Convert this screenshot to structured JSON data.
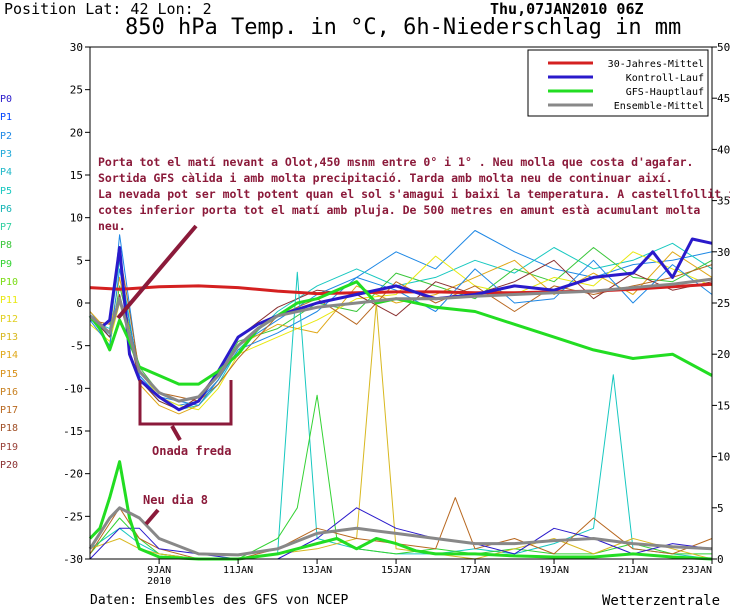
{
  "header": {
    "position_text": "Position   Lat: 42 Lon: 2",
    "date_text": "Thu,07JAN2010 06Z"
  },
  "footer": {
    "source": "Daten: Ensembles des GFS von NCEP",
    "brand": "Wetterzentrale"
  },
  "members": {
    "labels": [
      "P0",
      "P1",
      "P2",
      "P3",
      "P4",
      "P5",
      "P6",
      "P7",
      "P8",
      "P9",
      "P10",
      "P11",
      "P12",
      "P13",
      "P14",
      "P15",
      "P16",
      "P17",
      "P18",
      "P19",
      "P20"
    ],
    "colors": [
      "#2a1acb",
      "#0044ff",
      "#1e88e5",
      "#1fa8d8",
      "#20b8c8",
      "#18c8c0",
      "#16b4b4",
      "#2fd0a0",
      "#3ac63a",
      "#33d233",
      "#7adc14",
      "#e8e810",
      "#e0d020",
      "#d8b820",
      "#e0a818",
      "#d89018",
      "#c88020",
      "#b86820",
      "#a05028",
      "#984038",
      "#8a3030"
    ]
  },
  "annotations": {
    "comment": [
      "Porta tot el matí nevant a Olot,450 msnm  entre 0° i 1° . Neu molla que costa d'agafar.",
      "Sortida GFS càlida i amb molta precipitació. Tarda amb molta neu de continuar així.",
      "La nevada pot ser molt potent quan el sol s'amagui i baixi la temperatura.  A castellfollit i",
      "cotes inferior porta tot el matí amb pluja. De 500 metres en amunt està acumulant molta",
      "neu."
    ],
    "cold_wave": "Onada freda",
    "snow_day": "Neu dia 8",
    "color": "#8b1a3a"
  },
  "chart_data": {
    "type": "line",
    "title": "850 hPa Temp. in °C, 6h-Niederschlag in mm",
    "x_ticks": [
      "9JAN\n2010",
      "11JAN",
      "13JAN",
      "15JAN",
      "17JAN",
      "19JAN",
      "21JAN",
      "23JAN"
    ],
    "x_tick_days": [
      9,
      11,
      13,
      15,
      17,
      19,
      21,
      23
    ],
    "x_range": [
      7.25,
      23.0
    ],
    "y_left_label_unit": "°C",
    "ylim_left": [
      -30,
      30
    ],
    "y_left_ticks": [
      -30,
      -25,
      -20,
      -15,
      -10,
      -5,
      0,
      5,
      10,
      15,
      20,
      25,
      30
    ],
    "ylim_right": [
      0,
      50
    ],
    "y_right_ticks": [
      0,
      5,
      10,
      15,
      20,
      25,
      30,
      35,
      40,
      45,
      50
    ],
    "grid": false,
    "legend_position": "top-right",
    "series": [
      {
        "name": "30-Jahres-Mittel",
        "axis": "left",
        "color": "#d42020",
        "width": 3,
        "x": [
          7.25,
          8.0,
          9.0,
          10.0,
          11.0,
          12.0,
          13.0,
          14.0,
          15.0,
          16.0,
          17.0,
          18.0,
          19.0,
          20.0,
          21.0,
          22.0,
          23.0
        ],
        "y": [
          1.8,
          1.6,
          1.9,
          2.0,
          1.8,
          1.4,
          1.1,
          1.2,
          1.3,
          1.3,
          1.2,
          1.2,
          1.3,
          1.4,
          1.6,
          1.9,
          2.2
        ]
      },
      {
        "name": "Kontroll-Lauf",
        "axis": "left",
        "color": "#2a1acb",
        "width": 3,
        "x": [
          7.25,
          7.5,
          7.75,
          8.0,
          8.25,
          8.5,
          9.0,
          9.5,
          10.0,
          10.5,
          11.0,
          11.5,
          12.0,
          13.0,
          14.0,
          15.0,
          16.0,
          17.0,
          18.0,
          19.0,
          20.0,
          21.0,
          21.5,
          22.0,
          22.5,
          23.0
        ],
        "y": [
          -1.5,
          -3.0,
          -2.0,
          6.5,
          -6.0,
          -9.0,
          -11.0,
          -12.5,
          -11.5,
          -8.0,
          -4.0,
          -2.5,
          -1.5,
          0.0,
          1.0,
          2.0,
          0.5,
          1.0,
          2.0,
          1.5,
          3.0,
          3.5,
          6.0,
          3.0,
          7.5,
          7.0
        ]
      },
      {
        "name": "GFS-Hauptlauf",
        "axis": "left",
        "color": "#22dd22",
        "width": 3,
        "x": [
          7.25,
          7.5,
          7.75,
          8.0,
          8.25,
          8.5,
          9.0,
          9.5,
          10.0,
          10.5,
          11.0,
          11.5,
          12.0,
          12.5,
          13.0,
          14.0,
          14.5,
          15.0,
          16.0,
          17.0,
          18.0,
          19.0,
          20.0,
          21.0,
          22.0,
          23.0
        ],
        "y": [
          -1.5,
          -3.0,
          -5.5,
          -2.0,
          -4.5,
          -7.5,
          -8.5,
          -9.5,
          -9.5,
          -8.0,
          -6.0,
          -3.0,
          -1.5,
          0.0,
          0.5,
          2.5,
          0.0,
          0.5,
          -0.5,
          -1.0,
          -2.5,
          -4.0,
          -5.5,
          -6.5,
          -6.0,
          -8.5
        ]
      },
      {
        "name": "Ensemble-Mittel",
        "axis": "left",
        "color": "#888888",
        "width": 3,
        "x": [
          7.25,
          7.75,
          8.0,
          8.5,
          9.0,
          9.5,
          10.0,
          10.5,
          11.0,
          11.5,
          12.0,
          13.0,
          14.0,
          15.0,
          16.0,
          17.0,
          18.0,
          19.0,
          20.0,
          21.0,
          22.0,
          23.0
        ],
        "y": [
          -1.5,
          -3.5,
          0.5,
          -8.0,
          -10.5,
          -11.5,
          -11.0,
          -8.5,
          -5.0,
          -3.0,
          -1.5,
          -0.5,
          0.0,
          0.5,
          0.5,
          0.8,
          1.0,
          1.2,
          1.4,
          1.8,
          2.2,
          2.8
        ]
      },
      {
        "name": "GFS-Hauptlauf precip",
        "axis": "right",
        "color": "#22dd22",
        "width": 3,
        "x": [
          7.25,
          7.5,
          7.75,
          8.0,
          8.25,
          8.5,
          9.0,
          10.0,
          11.0,
          12.0,
          13.0,
          13.5,
          14.0,
          14.5,
          15.0,
          15.5,
          16.0,
          17.0,
          18.0,
          19.0,
          20.0,
          21.0,
          22.0,
          23.0
        ],
        "y": [
          2.0,
          3.0,
          6.0,
          9.5,
          4.0,
          1.0,
          0.2,
          0.0,
          0.0,
          0.5,
          1.5,
          2.0,
          1.0,
          2.0,
          1.5,
          0.8,
          0.5,
          0.5,
          0.3,
          0.2,
          0.2,
          0.5,
          0.2,
          0.0
        ]
      },
      {
        "name": "Ensemble-Mittel precip",
        "axis": "right",
        "color": "#888888",
        "width": 3,
        "x": [
          7.25,
          7.75,
          8.0,
          8.5,
          9.0,
          10.0,
          11.0,
          12.0,
          13.0,
          14.0,
          15.0,
          16.0,
          17.0,
          18.0,
          19.0,
          20.0,
          21.0,
          22.0,
          23.0
        ],
        "y": [
          1.0,
          4.0,
          5.0,
          4.0,
          2.0,
          0.5,
          0.4,
          1.0,
          2.5,
          3.0,
          2.5,
          2.0,
          1.5,
          1.5,
          1.8,
          2.0,
          1.5,
          1.2,
          1.0
        ]
      }
    ],
    "ensemble_traces": {
      "temperature": [
        {
          "x": [
            7.25,
            7.75,
            8.0,
            8.5,
            9.0,
            9.5,
            10.0,
            10.5,
            11.0,
            12.0,
            13.0,
            14.0,
            15.0,
            16.0,
            17.0,
            18.0,
            19.0,
            20.0,
            21.0,
            22.0,
            23.0
          ],
          "y": [
            -1.0,
            -4.0,
            8.0,
            -8.5,
            -11.0,
            -12.0,
            -11.5,
            -9.0,
            -5.0,
            -2.0,
            1.0,
            3.0,
            6.0,
            4.0,
            8.5,
            6.0,
            4.0,
            3.0,
            4.5,
            5.0,
            6.0
          ]
        },
        {
          "x": [
            7.25,
            7.75,
            8.0,
            8.5,
            9.0,
            9.5,
            10.0,
            10.5,
            11.0,
            12.0,
            13.0,
            14.0,
            15.0,
            16.0,
            17.0,
            18.0,
            19.0,
            20.0,
            21.0,
            22.0,
            23.0
          ],
          "y": [
            -2.0,
            -3.0,
            5.0,
            -9.0,
            -11.5,
            -12.5,
            -12.0,
            -9.5,
            -5.5,
            -1.0,
            2.0,
            4.0,
            2.0,
            3.0,
            5.0,
            3.5,
            6.5,
            4.0,
            5.0,
            7.0,
            4.0
          ]
        },
        {
          "x": [
            7.25,
            7.75,
            8.0,
            8.5,
            9.0,
            9.5,
            10.0,
            10.5,
            11.0,
            12.0,
            13.0,
            14.0,
            15.0,
            16.0,
            17.0,
            18.0,
            19.0,
            20.0,
            21.0,
            22.0,
            23.0
          ],
          "y": [
            -1.5,
            -5.0,
            2.0,
            -7.5,
            -10.5,
            -11.5,
            -11.0,
            -8.5,
            -4.5,
            -3.0,
            0.0,
            -1.0,
            3.5,
            2.0,
            0.5,
            4.0,
            2.5,
            6.5,
            3.0,
            2.5,
            5.0
          ]
        },
        {
          "x": [
            7.25,
            7.75,
            8.0,
            8.5,
            9.0,
            9.5,
            10.0,
            10.5,
            11.0,
            12.0,
            13.0,
            14.0,
            15.0,
            16.0,
            17.0,
            18.0,
            19.0,
            20.0,
            21.0,
            22.0,
            23.0
          ],
          "y": [
            -2.5,
            -4.5,
            0.0,
            -8.0,
            -11.0,
            -12.0,
            -12.5,
            -10.0,
            -6.0,
            -4.0,
            -2.0,
            0.5,
            1.0,
            5.5,
            2.0,
            1.0,
            3.0,
            2.0,
            6.0,
            4.0,
            2.0
          ]
        },
        {
          "x": [
            7.25,
            7.75,
            8.0,
            8.5,
            9.0,
            9.5,
            10.0,
            10.5,
            11.0,
            12.0,
            13.0,
            14.0,
            15.0,
            16.0,
            17.0,
            18.0,
            19.0,
            20.0,
            21.0,
            22.0,
            23.0
          ],
          "y": [
            -1.0,
            -3.5,
            3.0,
            -9.5,
            -12.0,
            -13.0,
            -12.0,
            -9.0,
            -5.0,
            -2.5,
            -3.5,
            2.0,
            0.0,
            1.0,
            3.0,
            5.0,
            1.0,
            3.5,
            1.0,
            6.0,
            3.0
          ]
        },
        {
          "x": [
            7.25,
            7.75,
            8.0,
            8.5,
            9.0,
            9.5,
            10.0,
            10.5,
            11.0,
            12.0,
            13.0,
            14.0,
            15.0,
            16.0,
            17.0,
            18.0,
            19.0,
            20.0,
            21.0,
            22.0,
            23.0
          ],
          "y": [
            -2.0,
            -2.5,
            6.0,
            -8.0,
            -10.5,
            -11.0,
            -11.5,
            -9.5,
            -6.5,
            -1.5,
            0.5,
            -2.5,
            2.5,
            0.0,
            2.0,
            -1.0,
            2.0,
            1.0,
            2.0,
            3.0,
            4.5
          ]
        },
        {
          "x": [
            7.25,
            7.75,
            8.0,
            8.5,
            9.0,
            9.5,
            10.0,
            10.5,
            11.0,
            12.0,
            13.0,
            14.0,
            15.0,
            16.0,
            17.0,
            18.0,
            19.0,
            20.0,
            21.0,
            22.0,
            23.0
          ],
          "y": [
            -1.5,
            -4.0,
            1.0,
            -9.0,
            -11.5,
            -12.5,
            -11.0,
            -8.0,
            -4.0,
            -0.5,
            1.5,
            1.0,
            -1.5,
            2.5,
            1.0,
            2.5,
            5.0,
            0.5,
            3.5,
            1.5,
            2.5
          ]
        },
        {
          "x": [
            7.25,
            7.75,
            8.0,
            8.5,
            9.0,
            9.5,
            10.0,
            10.5,
            11.0,
            12.0,
            13.0,
            14.0,
            15.0,
            16.0,
            17.0,
            18.0,
            19.0,
            20.0,
            21.0,
            22.0,
            23.0
          ],
          "y": [
            -2.0,
            -5.0,
            4.0,
            -8.5,
            -11.0,
            -11.5,
            -12.0,
            -9.0,
            -5.5,
            -3.5,
            -1.0,
            3.0,
            1.5,
            -1.0,
            4.0,
            0.0,
            0.5,
            5.0,
            0.0,
            4.5,
            1.0
          ]
        }
      ],
      "precip": [
        {
          "x": [
            7.25,
            8.0,
            8.5,
            9.0,
            10.0,
            11.0,
            12.0,
            12.5,
            13.0,
            14.0,
            15.0,
            16.0,
            17.0,
            18.0,
            19.0,
            20.0,
            20.5,
            21.0,
            22.0,
            23.0
          ],
          "y": [
            1.0,
            3.0,
            1.5,
            0.5,
            0.0,
            0.0,
            0.5,
            28.0,
            2.0,
            1.0,
            0.5,
            0.5,
            1.0,
            0.5,
            1.5,
            3.0,
            18.0,
            1.0,
            0.5,
            0.0
          ]
        },
        {
          "x": [
            7.25,
            8.0,
            8.5,
            9.0,
            10.0,
            11.0,
            12.0,
            12.5,
            13.0,
            13.5,
            14.0,
            15.0,
            16.0,
            17.0,
            18.0,
            19.0,
            20.0,
            21.0,
            22.0,
            23.0
          ],
          "y": [
            0.5,
            4.0,
            2.0,
            0.5,
            0.0,
            0.0,
            2.0,
            5.0,
            16.0,
            2.0,
            1.0,
            0.5,
            1.0,
            0.5,
            1.0,
            0.5,
            0.5,
            1.5,
            0.5,
            0.5
          ]
        },
        {
          "x": [
            7.25,
            8.0,
            8.5,
            9.0,
            10.0,
            11.0,
            12.0,
            13.0,
            14.0,
            14.5,
            15.0,
            16.0,
            17.0,
            18.0,
            19.0,
            20.0,
            21.0,
            22.0,
            23.0
          ],
          "y": [
            1.0,
            2.0,
            1.0,
            0.5,
            0.0,
            0.0,
            0.5,
            1.0,
            2.0,
            25.0,
            1.0,
            0.5,
            0.0,
            1.0,
            2.0,
            0.5,
            2.0,
            1.0,
            0.0
          ]
        },
        {
          "x": [
            7.25,
            8.0,
            8.5,
            9.0,
            10.0,
            11.0,
            12.0,
            13.0,
            14.0,
            15.0,
            16.0,
            16.5,
            17.0,
            18.0,
            19.0,
            20.0,
            21.0,
            22.0,
            23.0
          ],
          "y": [
            0.5,
            5.0,
            2.0,
            1.0,
            0.0,
            0.0,
            1.0,
            3.0,
            2.0,
            1.5,
            1.0,
            6.0,
            1.0,
            2.0,
            0.5,
            4.0,
            1.0,
            0.5,
            2.0
          ]
        },
        {
          "x": [
            7.25,
            8.0,
            8.5,
            9.0,
            10.0,
            11.0,
            12.0,
            13.0,
            14.0,
            15.0,
            16.0,
            17.0,
            18.0,
            19.0,
            20.0,
            21.0,
            22.0,
            23.0
          ],
          "y": [
            0.0,
            3.0,
            3.0,
            1.0,
            0.5,
            0.0,
            0.0,
            2.0,
            5.0,
            3.0,
            2.0,
            1.5,
            0.5,
            3.0,
            2.0,
            0.5,
            1.5,
            1.0
          ]
        }
      ]
    }
  }
}
